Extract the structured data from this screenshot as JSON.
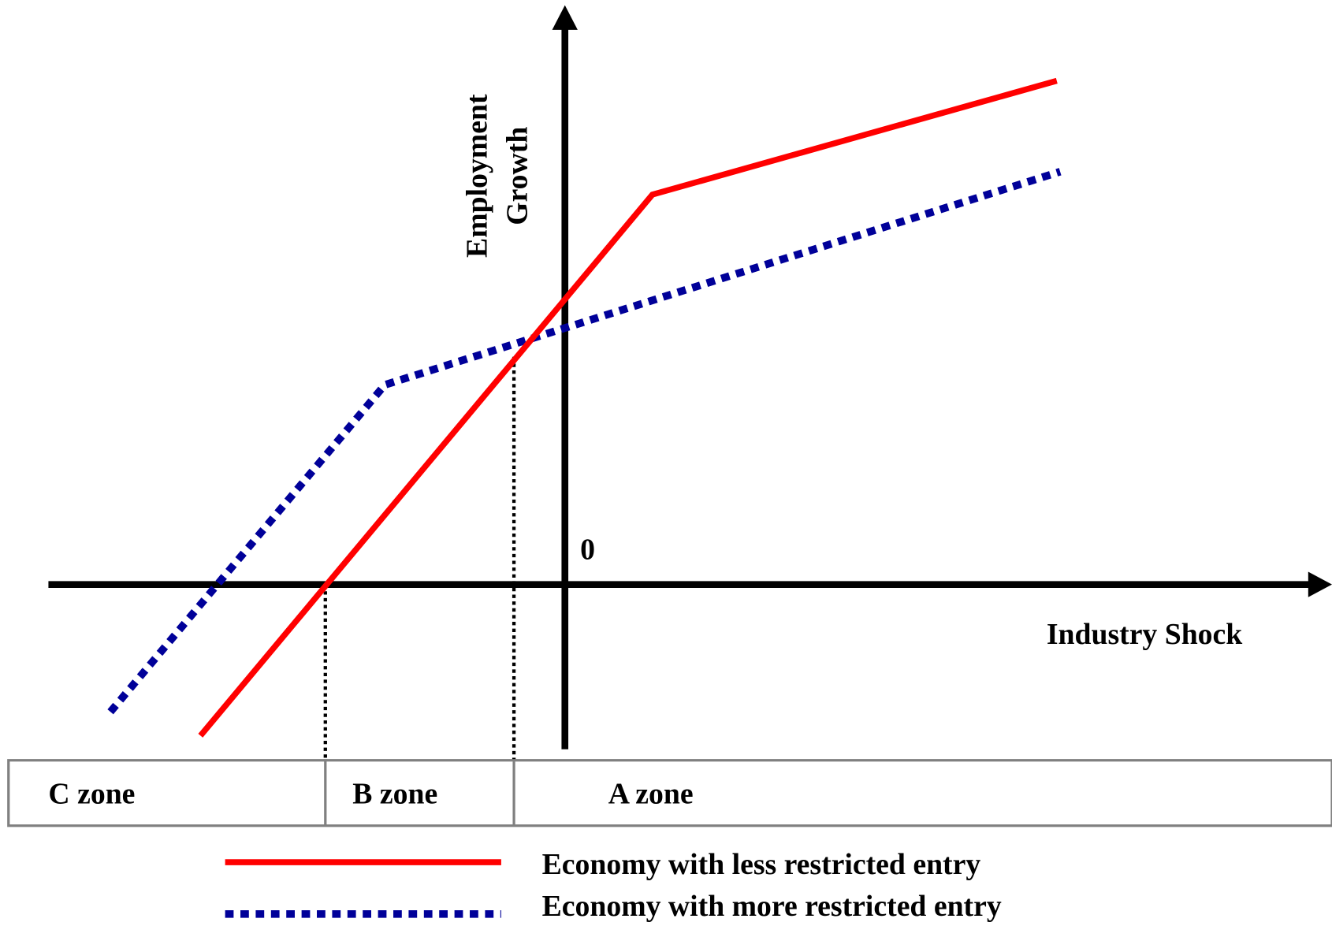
{
  "axes": {
    "y_label": [
      "Employment",
      "Growth"
    ],
    "origin_label": "0",
    "x_label": "Industry Shock"
  },
  "zones": [
    "C zone",
    "B zone",
    "A zone"
  ],
  "legend": [
    {
      "label": "Economy with less restricted entry"
    },
    {
      "label": "Economy with more restricted entry"
    }
  ]
}
